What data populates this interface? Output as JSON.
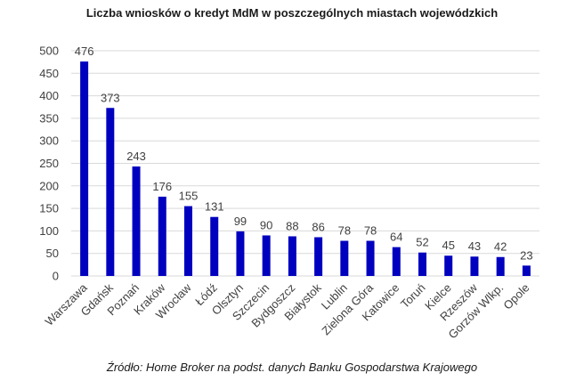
{
  "chart_data": {
    "type": "bar",
    "title": "Liczba wniosków o kredyt MdM w poszczególnych miastach wojewódzkich",
    "source": "Źródło: Home Broker na podst. danych Banku Gospodarstwa Krajowego",
    "categories": [
      "Warszawa",
      "Gdańsk",
      "Poznań",
      "Kraków",
      "Wrocław",
      "Łódź",
      "Olsztyn",
      "Szczecin",
      "Bydgoszcz",
      "Białystok",
      "Lublin",
      "Zielona Góra",
      "Katowice",
      "Toruń",
      "Kielce",
      "Rzeszów",
      "Gorzów Wlkp.",
      "Opole"
    ],
    "values": [
      476,
      373,
      243,
      176,
      155,
      131,
      99,
      90,
      88,
      86,
      78,
      78,
      64,
      52,
      45,
      43,
      42,
      23
    ],
    "ylim": [
      0,
      500
    ],
    "yticks": [
      0,
      50,
      100,
      150,
      200,
      250,
      300,
      350,
      400,
      450,
      500
    ],
    "grid": true,
    "legend": "none",
    "bar_color": "#0000bf",
    "grid_color": "#d9d9d9"
  }
}
